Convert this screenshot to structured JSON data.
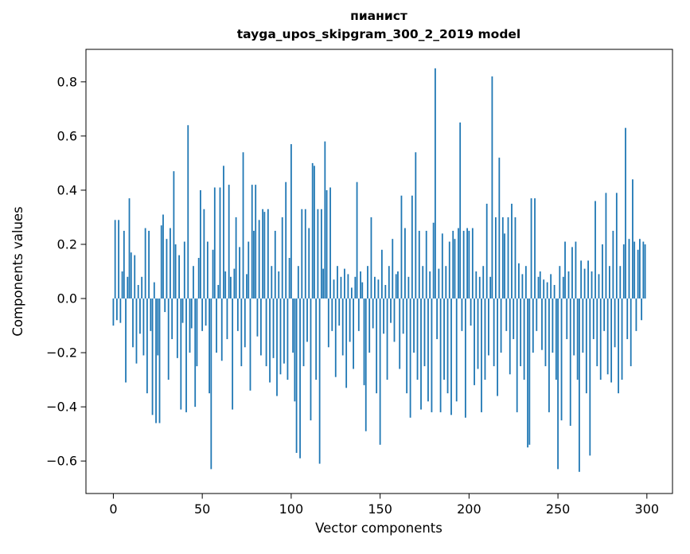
{
  "chart_data": {
    "type": "bar",
    "title": "пианист",
    "subtitle": "tayga_upos_skipgram_300_2_2019 model",
    "xlabel": "Vector components",
    "ylabel": "Components values",
    "xlim": [
      -15.4,
      314.4
    ],
    "ylim": [
      -0.72,
      0.92
    ],
    "xticks": [
      0,
      50,
      100,
      150,
      200,
      250,
      300
    ],
    "yticks": [
      -0.6,
      -0.4,
      -0.2,
      0.0,
      0.2,
      0.4,
      0.6,
      0.8
    ],
    "bar_color": "#1f77b4",
    "grid": false,
    "legend": "none",
    "x_start": 0,
    "values": [
      -0.1,
      0.29,
      -0.08,
      0.29,
      -0.09,
      0.1,
      0.25,
      -0.31,
      0.08,
      0.37,
      0.17,
      -0.18,
      0.16,
      -0.24,
      0.05,
      -0.13,
      0.08,
      -0.21,
      0.26,
      -0.35,
      0.25,
      -0.12,
      -0.43,
      0.06,
      -0.46,
      -0.21,
      -0.46,
      0.27,
      0.31,
      -0.05,
      0.22,
      -0.3,
      0.26,
      -0.15,
      0.47,
      0.2,
      -0.22,
      0.16,
      -0.41,
      -0.09,
      0.21,
      -0.42,
      0.64,
      -0.2,
      -0.11,
      0.12,
      -0.4,
      -0.25,
      0.15,
      0.4,
      -0.12,
      0.33,
      -0.1,
      0.21,
      -0.35,
      -0.63,
      0.18,
      0.41,
      -0.2,
      0.05,
      0.41,
      -0.23,
      0.49,
      0.1,
      -0.15,
      0.42,
      0.08,
      -0.41,
      0.11,
      0.3,
      -0.12,
      0.19,
      -0.25,
      0.54,
      -0.18,
      0.09,
      0.21,
      -0.34,
      0.42,
      0.25,
      0.42,
      -0.14,
      0.29,
      -0.21,
      0.33,
      0.32,
      -0.25,
      0.33,
      -0.31,
      0.12,
      -0.22,
      0.25,
      -0.36,
      0.1,
      -0.28,
      0.3,
      -0.24,
      0.43,
      -0.3,
      0.15,
      0.57,
      -0.2,
      -0.38,
      -0.57,
      0.12,
      -0.59,
      0.33,
      -0.25,
      0.33,
      -0.16,
      0.26,
      -0.45,
      0.5,
      0.49,
      -0.3,
      0.33,
      -0.61,
      0.33,
      0.11,
      0.58,
      0.4,
      -0.18,
      0.41,
      -0.12,
      0.07,
      -0.29,
      0.12,
      -0.1,
      0.08,
      -0.21,
      0.11,
      -0.33,
      0.09,
      -0.16,
      0.04,
      -0.26,
      0.08,
      0.43,
      -0.12,
      0.1,
      0.06,
      -0.32,
      -0.49,
      0.12,
      -0.2,
      0.3,
      -0.11,
      0.08,
      -0.35,
      0.07,
      -0.54,
      0.18,
      -0.13,
      0.05,
      -0.3,
      0.12,
      -0.09,
      0.22,
      -0.16,
      0.09,
      0.1,
      -0.26,
      0.38,
      -0.13,
      0.26,
      -0.35,
      0.08,
      -0.44,
      0.38,
      -0.2,
      0.54,
      -0.3,
      0.25,
      -0.41,
      0.12,
      -0.25,
      0.25,
      -0.38,
      0.1,
      -0.42,
      0.28,
      0.85,
      -0.15,
      0.11,
      -0.42,
      0.24,
      -0.3,
      0.12,
      -0.35,
      0.21,
      -0.43,
      0.25,
      0.22,
      -0.38,
      0.26,
      0.65,
      -0.12,
      0.25,
      -0.44,
      0.26,
      0.25,
      -0.1,
      0.26,
      -0.32,
      0.1,
      -0.26,
      0.08,
      -0.42,
      0.12,
      -0.3,
      0.35,
      -0.21,
      0.08,
      0.82,
      -0.25,
      0.3,
      -0.36,
      0.52,
      -0.2,
      0.3,
      0.24,
      -0.12,
      0.3,
      -0.28,
      0.35,
      -0.15,
      0.3,
      -0.42,
      0.13,
      -0.25,
      0.09,
      -0.3,
      0.12,
      -0.55,
      -0.54,
      0.37,
      -0.2,
      0.37,
      -0.12,
      0.08,
      0.1,
      -0.19,
      0.07,
      -0.25,
      0.06,
      -0.42,
      0.09,
      -0.2,
      0.05,
      -0.3,
      -0.63,
      0.12,
      -0.45,
      0.08,
      0.21,
      -0.15,
      0.1,
      -0.47,
      0.19,
      -0.21,
      0.21,
      -0.3,
      -0.64,
      0.14,
      -0.2,
      0.11,
      -0.35,
      0.14,
      -0.58,
      0.1,
      -0.15,
      0.36,
      -0.25,
      0.09,
      -0.3,
      0.2,
      -0.12,
      0.39,
      -0.28,
      0.12,
      -0.31,
      0.25,
      -0.18,
      0.39,
      -0.35,
      0.12,
      -0.3,
      0.2,
      0.63,
      -0.15,
      0.22,
      -0.25,
      0.44,
      0.21,
      -0.12,
      0.18,
      0.22,
      -0.08,
      0.21,
      0.2
    ]
  }
}
